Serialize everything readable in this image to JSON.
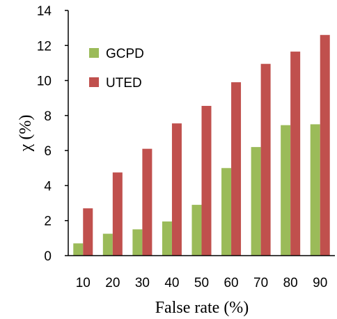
{
  "chart_data": {
    "type": "bar",
    "title": "",
    "xlabel": "False rate  (%)",
    "ylabel": "χ (%)",
    "categories": [
      "10",
      "20",
      "30",
      "40",
      "50",
      "60",
      "70",
      "80",
      "90"
    ],
    "ylim": [
      0,
      14
    ],
    "yticks": [
      "0",
      "2",
      "4",
      "6",
      "8",
      "10",
      "12",
      "14"
    ],
    "grid": false,
    "legend": "top-left",
    "series": [
      {
        "name": "GCPD",
        "color": "#9bbb59",
        "values": [
          0.7,
          1.25,
          1.5,
          1.95,
          2.9,
          5.0,
          6.2,
          7.45,
          7.5
        ]
      },
      {
        "name": "UTED",
        "color": "#c0504d",
        "values": [
          2.7,
          4.75,
          6.1,
          7.55,
          8.55,
          9.9,
          10.95,
          11.65,
          12.6
        ]
      }
    ]
  }
}
